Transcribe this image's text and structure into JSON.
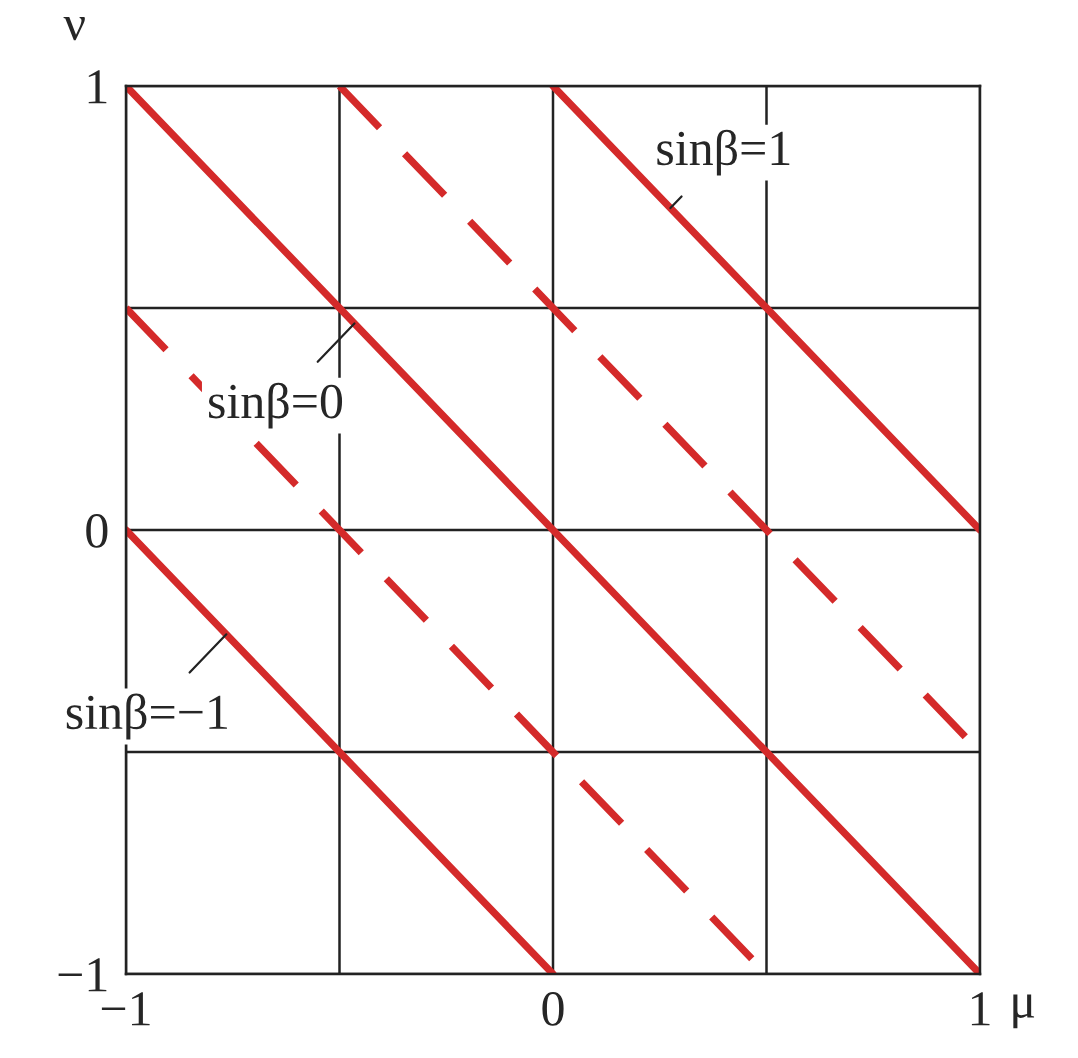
{
  "chart_data": {
    "type": "line",
    "xlabel": "μ",
    "ylabel": "ν",
    "xlim": [
      -1,
      1
    ],
    "ylim": [
      -1,
      1
    ],
    "xticks": [
      {
        "value": -1,
        "label": "−1"
      },
      {
        "value": -0.5,
        "label": null
      },
      0,
      {
        "value": 0.5,
        "label": null
      },
      1
    ],
    "yticks": [
      {
        "value": -1,
        "label": "−1"
      },
      {
        "value": -0.5,
        "label": null
      },
      0,
      {
        "value": 0.5,
        "label": null
      },
      1
    ],
    "grid": true,
    "legend": false,
    "marker": "none",
    "series": [
      {
        "name": "sinβ=1",
        "color": "#d42a2a",
        "line_style": "solid",
        "x": [
          0,
          1
        ],
        "values": [
          1,
          0
        ]
      },
      {
        "color": "#d42a2a",
        "line_style": "dashed",
        "x": [
          -0.5,
          1
        ],
        "values": [
          1,
          -0.5
        ]
      },
      {
        "name": "sinβ=0",
        "color": "#d42a2a",
        "line_style": "solid",
        "x": [
          -1,
          1
        ],
        "values": [
          1,
          -1
        ]
      },
      {
        "color": "#d42a2a",
        "line_style": "dashed",
        "x": [
          -1,
          0.5
        ],
        "values": [
          0.5,
          -1
        ]
      },
      {
        "name": "sinβ=−1",
        "color": "#d42a2a",
        "line_style": "solid",
        "x": [
          -1,
          0
        ],
        "values": [
          0,
          -1
        ]
      }
    ]
  }
}
